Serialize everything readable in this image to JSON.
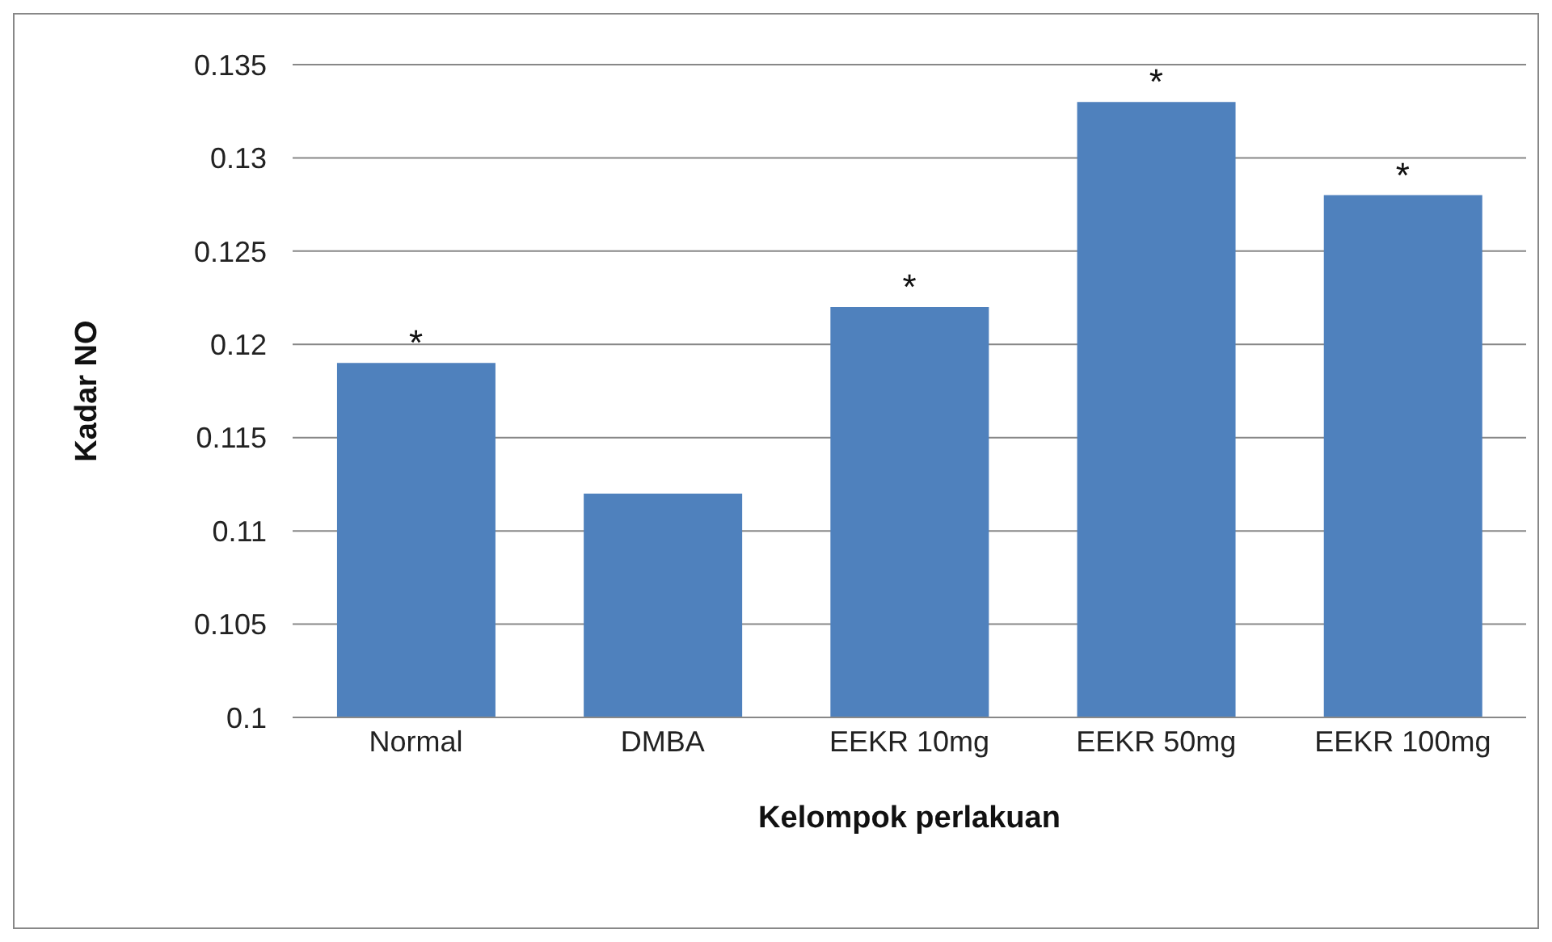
{
  "chart_data": {
    "type": "bar",
    "xlabel": "Kelompok perlakuan",
    "ylabel": "Kadar NO",
    "categories": [
      "Normal",
      "DMBA",
      "EEKR 10mg",
      "EEKR 50mg",
      "EEKR 100mg"
    ],
    "values": [
      0.119,
      0.112,
      0.122,
      0.133,
      0.128
    ],
    "color": "#4f81bd",
    "ylim": [
      0.1,
      0.135
    ],
    "yticks": [
      0.1,
      0.105,
      0.11,
      0.115,
      0.12,
      0.125,
      0.13,
      0.135
    ],
    "grid": "y",
    "legend": false,
    "annotations": [
      {
        "text": "*",
        "x": "Normal",
        "y": 0.119
      },
      {
        "text": "*",
        "x": "EEKR 10mg",
        "y": 0.122
      },
      {
        "text": "*",
        "x": "EEKR 50mg",
        "y": 0.133
      },
      {
        "text": "*",
        "x": "EEKR 100mg",
        "y": 0.128
      }
    ]
  }
}
